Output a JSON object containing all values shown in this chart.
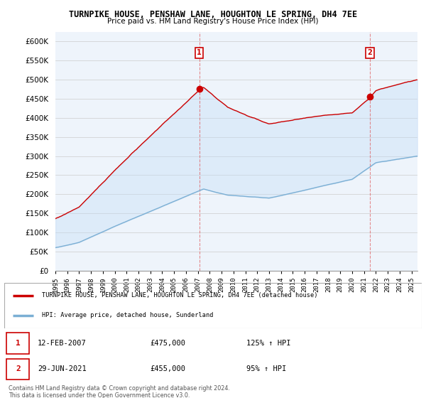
{
  "title": "TURNPIKE HOUSE, PENSHAW LANE, HOUGHTON LE SPRING, DH4 7EE",
  "subtitle": "Price paid vs. HM Land Registry's House Price Index (HPI)",
  "ylim": [
    0,
    625000
  ],
  "yticks": [
    0,
    50000,
    100000,
    150000,
    200000,
    250000,
    300000,
    350000,
    400000,
    450000,
    500000,
    550000,
    600000
  ],
  "legend_line1": "TURNPIKE HOUSE, PENSHAW LANE, HOUGHTON LE SPRING, DH4 7EE (detached house)",
  "legend_line2": "HPI: Average price, detached house, Sunderland",
  "house_color": "#cc0000",
  "hpi_color": "#7bafd4",
  "fill_color": "#ddeeff",
  "marker1_date_x": 2007.12,
  "marker1_price": 475000,
  "marker1_label": "1",
  "marker1_date_str": "12-FEB-2007",
  "marker1_price_str": "£475,000",
  "marker1_hpi_str": "125% ↑ HPI",
  "marker2_date_x": 2021.5,
  "marker2_price": 455000,
  "marker2_label": "2",
  "marker2_date_str": "29-JUN-2021",
  "marker2_price_str": "£455,000",
  "marker2_hpi_str": "95% ↑ HPI",
  "footer": "Contains HM Land Registry data © Crown copyright and database right 2024.\nThis data is licensed under the Open Government Licence v3.0.",
  "background_color": "#ffffff",
  "grid_color": "#cccccc",
  "xlim_start": 1995,
  "xlim_end": 2025.5
}
